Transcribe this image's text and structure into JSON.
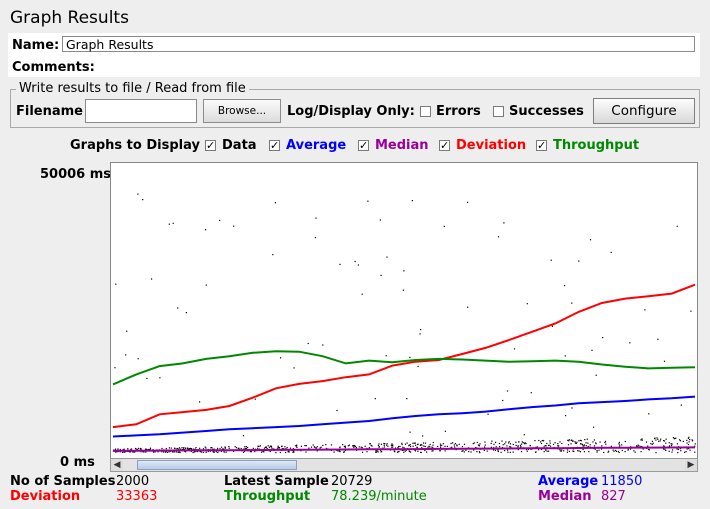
{
  "title": "Graph Results",
  "name": {
    "label": "Name:",
    "value": "Graph Results"
  },
  "comments": {
    "label": "Comments:"
  },
  "file_group": {
    "title": "Write results to file / Read from file",
    "filename_label": "Filename",
    "filename_value": "",
    "browse_label": "Browse...",
    "log_display_label": "Log/Display Only:",
    "errors_label": "Errors",
    "errors_checked": false,
    "successes_label": "Successes",
    "successes_checked": false,
    "configure_label": "Configure"
  },
  "graphs_to_display": {
    "label": "Graphs to Display",
    "items": [
      {
        "label": "Data",
        "checked": true,
        "color": "#000000"
      },
      {
        "label": "Average",
        "checked": true,
        "color": "#0000ff"
      },
      {
        "label": "Median",
        "checked": true,
        "color": "#990099"
      },
      {
        "label": "Deviation",
        "checked": true,
        "color": "#ff0000"
      },
      {
        "label": "Throughput",
        "checked": true,
        "color": "#008800"
      }
    ]
  },
  "chart_data": {
    "type": "line",
    "y_max_label": "50006 ms",
    "y_min_label": "0 ms",
    "ylim": [
      0,
      50006
    ],
    "series": [
      {
        "name": "Average",
        "color": "#0000ff",
        "values": [
          2800,
          3000,
          3200,
          3500,
          3800,
          4100,
          4300,
          4500,
          4700,
          5000,
          5300,
          5600,
          6100,
          6500,
          6800,
          7000,
          7300,
          7700,
          8100,
          8400,
          8800,
          9000,
          9200,
          9500,
          9700,
          10000
        ]
      },
      {
        "name": "Median",
        "color": "#990099",
        "values": [
          200,
          230,
          260,
          280,
          300,
          330,
          350,
          380,
          400,
          430,
          450,
          480,
          500,
          530,
          560,
          590,
          610,
          640,
          660,
          690,
          720,
          750,
          780,
          800,
          815,
          827
        ]
      },
      {
        "name": "Deviation",
        "color": "#ff0000",
        "values": [
          4500,
          5000,
          6800,
          7200,
          7600,
          8300,
          9800,
          11500,
          12300,
          12800,
          13500,
          14000,
          15600,
          16300,
          16600,
          17700,
          18800,
          20200,
          21700,
          23200,
          25300,
          26900,
          27700,
          28100,
          28600,
          30200
        ]
      },
      {
        "name": "Throughput",
        "color": "#008800",
        "values": [
          12200,
          14000,
          15500,
          16000,
          16800,
          17300,
          17900,
          18200,
          18100,
          17300,
          16000,
          16500,
          16200,
          16600,
          16800,
          16700,
          16500,
          16300,
          16400,
          16500,
          16300,
          15800,
          15400,
          15100,
          15200,
          15300
        ]
      }
    ]
  },
  "stats": {
    "samples_label": "No of Samples",
    "samples_value": "2000",
    "latest_label": "Latest Sample",
    "latest_value": "20729",
    "average_label": "Average",
    "average_value": "11850",
    "deviation_label": "Deviation",
    "deviation_value": "33363",
    "throughput_label": "Throughput",
    "throughput_value": "78.239/minute",
    "median_label": "Median",
    "median_value": "827"
  }
}
